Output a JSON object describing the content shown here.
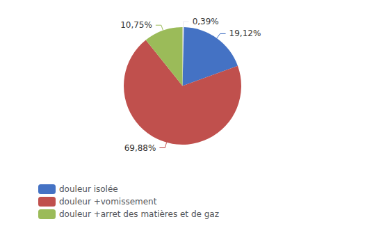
{
  "chart_data": {
    "type": "pie",
    "categories": [
      null,
      "douleur isolée",
      "douleur +vomissement",
      "douleur +arret des matières et de gaz"
    ],
    "values": [
      0.39,
      19.12,
      69.88,
      10.75
    ],
    "value_labels": [
      "0,39%",
      "19,12%",
      "69,88%",
      "10,75%"
    ],
    "colors": [
      "#E8E8F0",
      "#4472C4",
      "#C0504D",
      "#9BBB59"
    ],
    "data_labels": true,
    "legend": "bottom left"
  }
}
